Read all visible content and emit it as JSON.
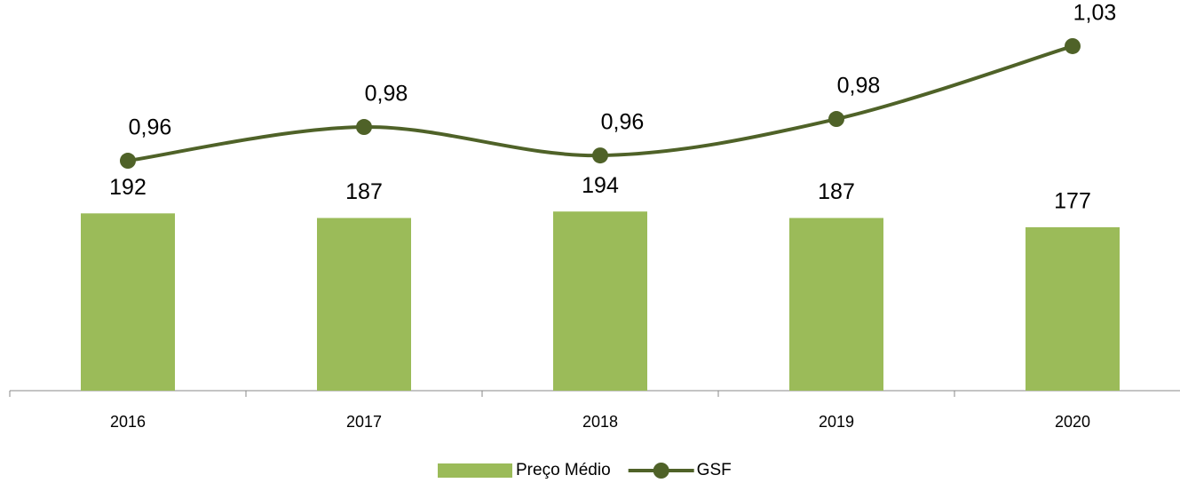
{
  "chart_data": {
    "type": "bar-line",
    "categories": [
      "2016",
      "2017",
      "2018",
      "2019",
      "2020"
    ],
    "series": [
      {
        "name": "Preço Médio",
        "type": "bar",
        "color": "#9bbb59",
        "values": [
          192,
          187,
          194,
          187,
          177
        ]
      },
      {
        "name": "GSF",
        "type": "line",
        "axis": "y2",
        "color": "#4f6228",
        "smooth": true,
        "values": [
          0.958,
          0.9792,
          0.9613,
          0.9842,
          1.03
        ],
        "value_labels": [
          "0,96",
          "0,98",
          "0,96",
          "0,98",
          "1,03"
        ]
      }
    ],
    "ylim": [
      0,
      400
    ],
    "y2lim": [
      0.8135,
      1.0456
    ],
    "legend": "bottom"
  }
}
